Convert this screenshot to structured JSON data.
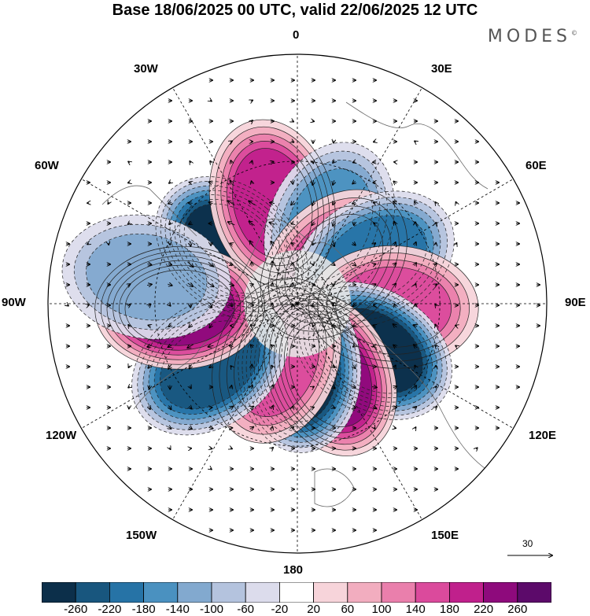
{
  "title": "Base 18/06/2025 00 UTC, valid 22/06/2025 12 UTC",
  "brand": "MODES",
  "brand_mark": "©",
  "longitude_labels": {
    "lon_0": "0",
    "lon_30e": "30E",
    "lon_60e": "60E",
    "lon_90e": "90E",
    "lon_120e": "120E",
    "lon_150e": "150E",
    "lon_180": "180",
    "lon_150w": "150W",
    "lon_120w": "120W",
    "lon_90w": "90W",
    "lon_60w": "60W",
    "lon_30w": "30W"
  },
  "reference_vector": {
    "value": "30"
  },
  "colorbar": {
    "ticks": [
      "-260",
      "-220",
      "-180",
      "-140",
      "-100",
      "-60",
      "-20",
      "20",
      "60",
      "100",
      "140",
      "180",
      "220",
      "260"
    ],
    "colors": [
      "#0c2f4a",
      "#18567e",
      "#2673a6",
      "#4a91c0",
      "#82a9cf",
      "#b4c3de",
      "#dcdcec",
      "#ffffff",
      "#f7d4da",
      "#f2adbf",
      "#ea7fac",
      "#db4a9c",
      "#c0208c",
      "#8e0a7c",
      "#5c0a6a"
    ]
  },
  "anomalies": [
    {
      "kind": "negative",
      "value": -260,
      "lon": -50,
      "colat_deg": 24,
      "label": "low-atlantic-west"
    },
    {
      "kind": "positive",
      "value": 200,
      "lon": -14,
      "colat_deg": 29,
      "label": "high-north-atlantic"
    },
    {
      "kind": "negative",
      "value": -140,
      "lon": 22,
      "colat_deg": 24,
      "label": "low-europe"
    },
    {
      "kind": "positive",
      "value": 140,
      "lon": 43,
      "colat_deg": 15,
      "label": "high-eurasia"
    },
    {
      "kind": "negative",
      "value": -180,
      "lon": 60,
      "colat_deg": 25,
      "label": "low-siberia-west"
    },
    {
      "kind": "positive",
      "value": 160,
      "lon": 92,
      "colat_deg": 27,
      "label": "high-siberia"
    },
    {
      "kind": "negative",
      "value": -260,
      "lon": 122,
      "colat_deg": 25,
      "label": "low-east-asia"
    },
    {
      "kind": "positive",
      "value": 220,
      "lon": 155,
      "colat_deg": 22,
      "label": "high-north-pacific"
    },
    {
      "kind": "negative",
      "value": -260,
      "lon": 178,
      "colat_deg": 18,
      "label": "low-bering"
    },
    {
      "kind": "positive",
      "value": 140,
      "lon": -160,
      "colat_deg": 17,
      "label": "high-alaska"
    },
    {
      "kind": "negative",
      "value": -220,
      "lon": -125,
      "colat_deg": 30,
      "label": "low-pacific-east"
    },
    {
      "kind": "positive",
      "value": 220,
      "lon": -92,
      "colat_deg": 33,
      "label": "high-north-america"
    },
    {
      "kind": "negative",
      "value": -100,
      "lon": -80,
      "colat_deg": 43,
      "label": "low-gulf"
    }
  ]
}
